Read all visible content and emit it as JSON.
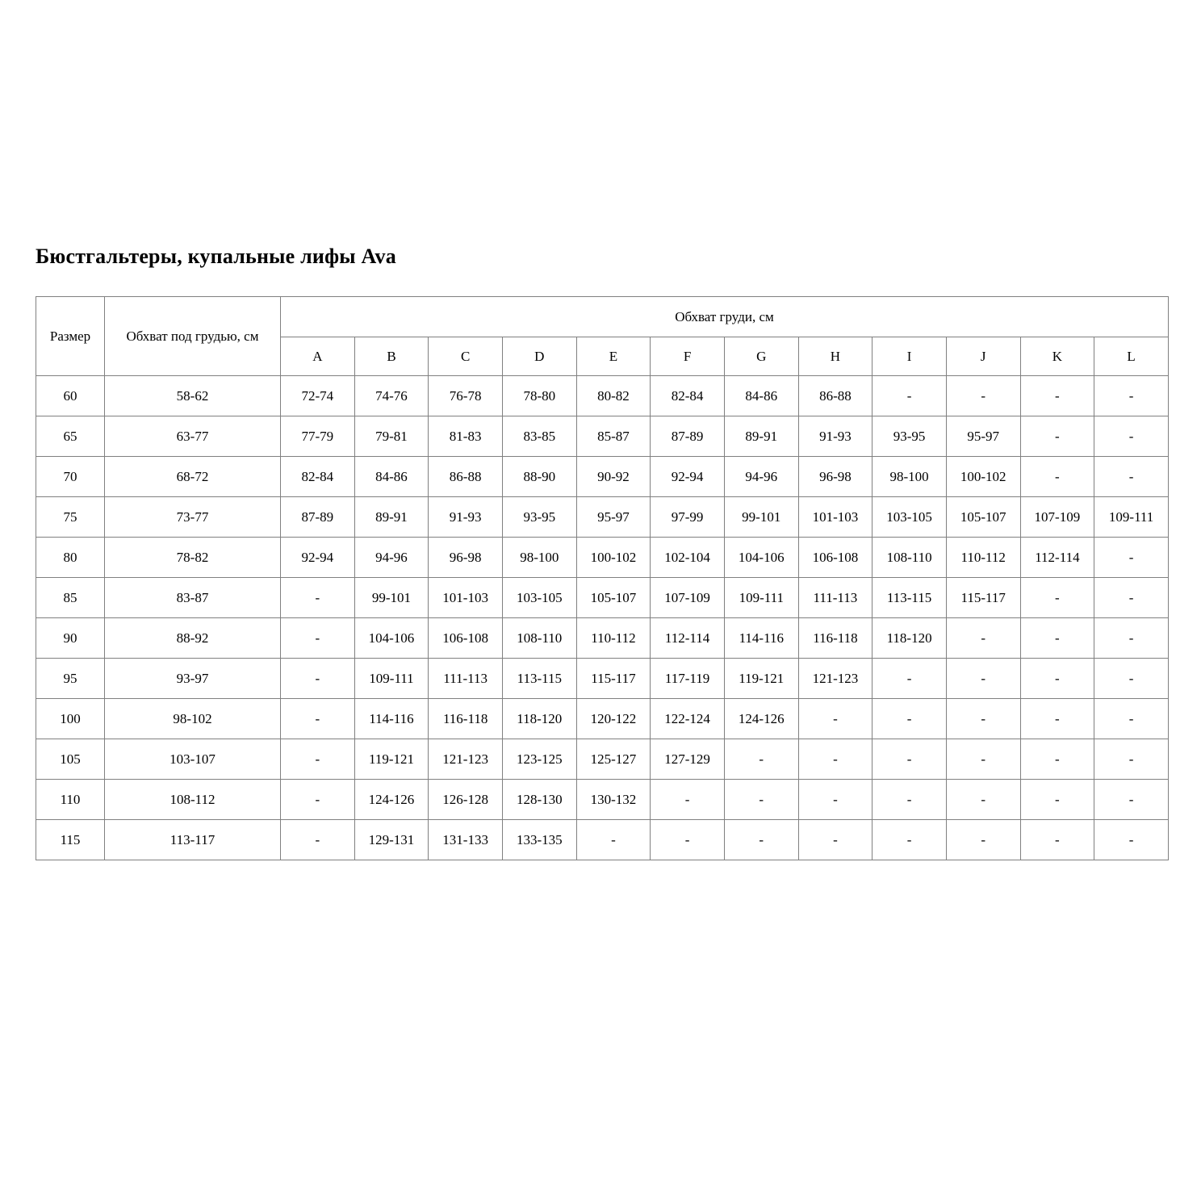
{
  "title": "Бюстгальтеры, купальные лифы Ava",
  "table": {
    "col1_header": "Размер",
    "col2_header": "Обхват под грудью, см",
    "group_header": "Обхват груди, см",
    "cup_labels": [
      "A",
      "B",
      "C",
      "D",
      "E",
      "F",
      "G",
      "H",
      "I",
      "J",
      "K",
      "L"
    ],
    "rows": [
      {
        "size": "60",
        "underbust": "58-62",
        "cups": [
          "72-74",
          "74-76",
          "76-78",
          "78-80",
          "80-82",
          "82-84",
          "84-86",
          "86-88",
          "-",
          "-",
          "-",
          "-"
        ]
      },
      {
        "size": "65",
        "underbust": "63-77",
        "cups": [
          "77-79",
          "79-81",
          "81-83",
          "83-85",
          "85-87",
          "87-89",
          "89-91",
          "91-93",
          "93-95",
          "95-97",
          "-",
          "-"
        ]
      },
      {
        "size": "70",
        "underbust": "68-72",
        "cups": [
          "82-84",
          "84-86",
          "86-88",
          "88-90",
          "90-92",
          "92-94",
          "94-96",
          "96-98",
          "98-100",
          "100-102",
          "-",
          "-"
        ]
      },
      {
        "size": "75",
        "underbust": "73-77",
        "cups": [
          "87-89",
          "89-91",
          "91-93",
          "93-95",
          "95-97",
          "97-99",
          "99-101",
          "101-103",
          "103-105",
          "105-107",
          "107-109",
          "109-111"
        ]
      },
      {
        "size": "80",
        "underbust": "78-82",
        "cups": [
          "92-94",
          "94-96",
          "96-98",
          "98-100",
          "100-102",
          "102-104",
          "104-106",
          "106-108",
          "108-110",
          "110-112",
          "112-114",
          "-"
        ]
      },
      {
        "size": "85",
        "underbust": "83-87",
        "cups": [
          "-",
          "99-101",
          "101-103",
          "103-105",
          "105-107",
          "107-109",
          "109-111",
          "111-113",
          "113-115",
          "115-117",
          "-",
          "-"
        ]
      },
      {
        "size": "90",
        "underbust": "88-92",
        "cups": [
          "-",
          "104-106",
          "106-108",
          "108-110",
          "110-112",
          "112-114",
          "114-116",
          "116-118",
          "118-120",
          "-",
          "-",
          "-"
        ]
      },
      {
        "size": "95",
        "underbust": "93-97",
        "cups": [
          "-",
          "109-111",
          "111-113",
          "113-115",
          "115-117",
          "117-119",
          "119-121",
          "121-123",
          "-",
          "-",
          "-",
          "-"
        ]
      },
      {
        "size": "100",
        "underbust": "98-102",
        "cups": [
          "-",
          "114-116",
          "116-118",
          "118-120",
          "120-122",
          "122-124",
          "124-126",
          "-",
          "-",
          "-",
          "-",
          "-"
        ]
      },
      {
        "size": "105",
        "underbust": "103-107",
        "cups": [
          "-",
          "119-121",
          "121-123",
          "123-125",
          "125-127",
          "127-129",
          "-",
          "-",
          "-",
          "-",
          "-",
          "-"
        ]
      },
      {
        "size": "110",
        "underbust": "108-112",
        "cups": [
          "-",
          "124-126",
          "126-128",
          "128-130",
          "130-132",
          "-",
          "-",
          "-",
          "-",
          "-",
          "-",
          "-"
        ]
      },
      {
        "size": "115",
        "underbust": "113-117",
        "cups": [
          "-",
          "129-131",
          "131-133",
          "133-135",
          "-",
          "-",
          "-",
          "-",
          "-",
          "-",
          "-",
          "-"
        ]
      }
    ]
  }
}
